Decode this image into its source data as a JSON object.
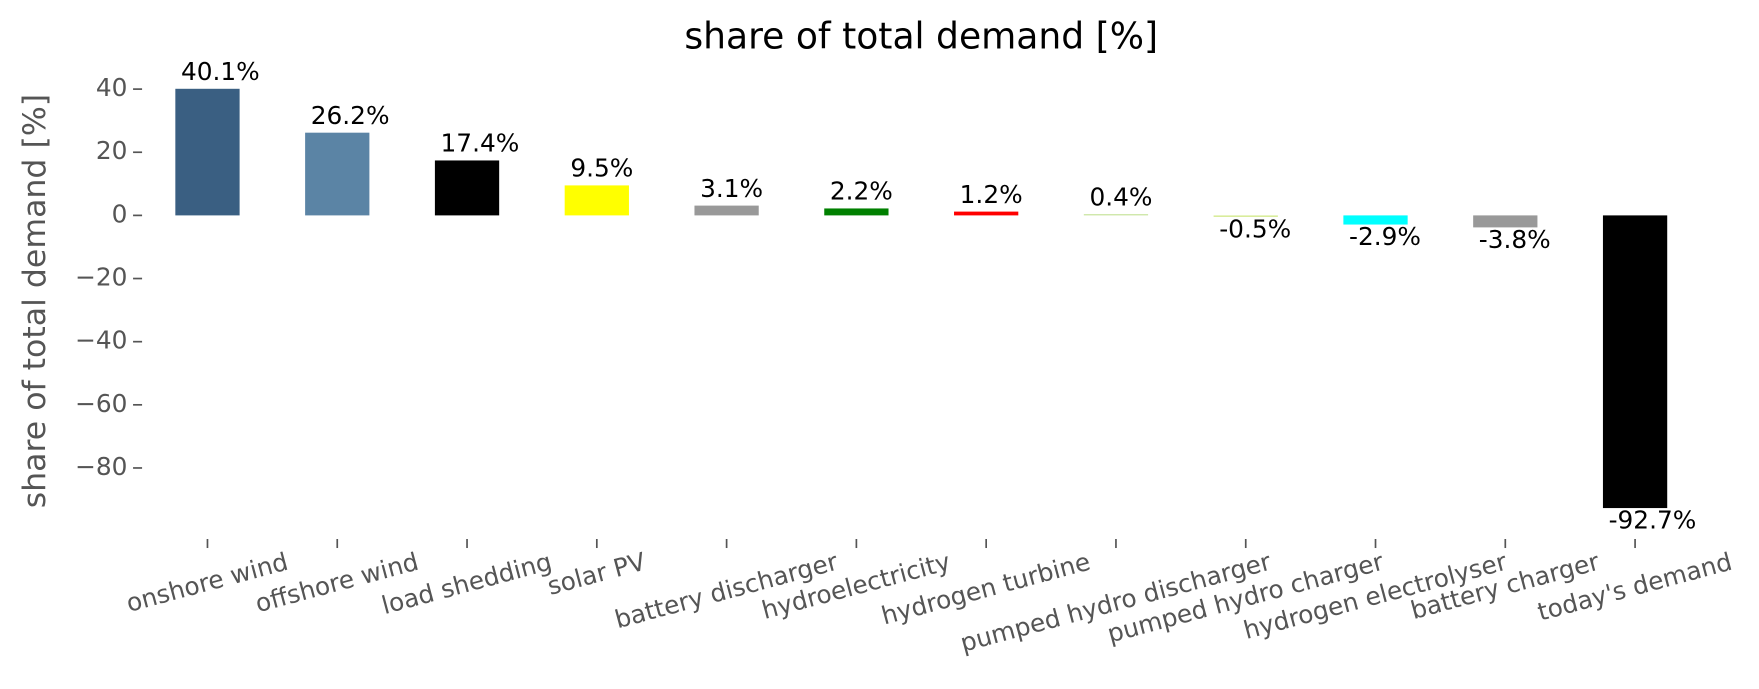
{
  "chart_data": {
    "type": "bar",
    "title": "share of total demand [%]",
    "ylabel": "share of total demand [%]",
    "categories": [
      "onshore wind",
      "offshore wind",
      "load shedding",
      "solar PV",
      "battery discharger",
      "hydroelectricity",
      "hydrogen turbine",
      "pumped hydro discharger",
      "pumped hydro charger",
      "hydrogen electrolyser",
      "battery charger",
      "today's demand"
    ],
    "values": [
      40.1,
      26.2,
      17.4,
      9.5,
      3.1,
      2.2,
      1.2,
      0.4,
      -0.5,
      -2.9,
      -3.8,
      -92.7
    ],
    "value_labels": [
      "40.1%",
      "26.2%",
      "17.4%",
      "9.5%",
      "3.1%",
      "2.2%",
      "1.2%",
      "0.4%",
      "-0.5%",
      "-2.9%",
      "-3.8%",
      "-92.7%"
    ],
    "colors": [
      "#3a5f82",
      "#5b84a5",
      "#000000",
      "#ffff00",
      "#999999",
      "#008000",
      "#ff0000",
      "#c9e5a0",
      "#d8ec9a",
      "#00ffff",
      "#999999",
      "#000000"
    ],
    "ylim": [
      -102.5,
      47
    ],
    "yticks": [
      {
        "value": -80,
        "label": "−80"
      },
      {
        "value": -60,
        "label": "−60"
      },
      {
        "value": -40,
        "label": "−40"
      },
      {
        "value": -20,
        "label": "−20"
      },
      0,
      20,
      40
    ]
  }
}
